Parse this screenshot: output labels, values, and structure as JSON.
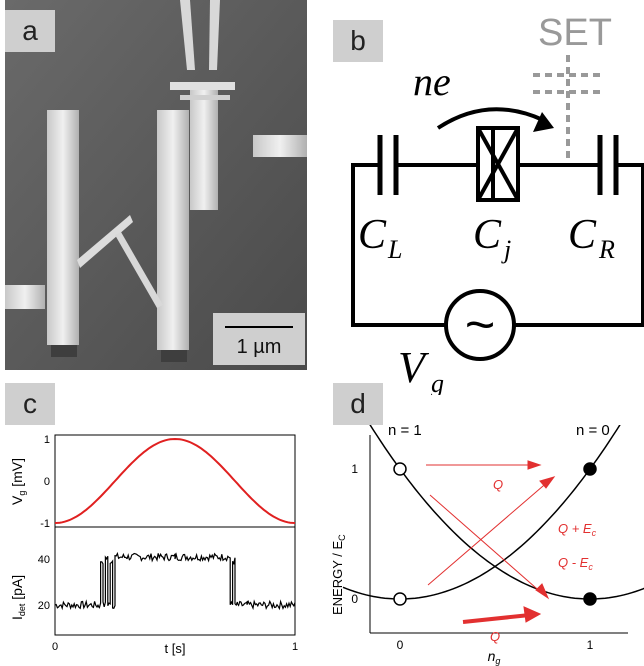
{
  "panels": {
    "a": {
      "label": "a",
      "scalebar": "1 µm"
    },
    "b": {
      "label": "b",
      "set_label": "SET",
      "ne_label": "ne",
      "cl": "C",
      "cl_sub": "L",
      "cj": "C",
      "cj_sub": "j",
      "cr": "C",
      "cr_sub": "R",
      "vg": "V",
      "vg_sub": "g",
      "source_symbol": "~"
    },
    "c": {
      "label": "c",
      "top_ylabel": "V",
      "top_ylabel_sub": "g",
      "top_ylabel_unit": " [mV]",
      "top_ticks": [
        "1",
        "0",
        "-1"
      ],
      "bottom_ylabel": "I",
      "bottom_ylabel_sub": "det",
      "bottom_ylabel_unit": " [pA]",
      "bottom_ticks": [
        "40",
        "20"
      ],
      "xlabel": "t [s]",
      "xticks": [
        "0",
        "1"
      ],
      "colors": {
        "sine": "#e02020",
        "trace": "#000000"
      }
    },
    "d": {
      "label": "d",
      "ylabel": "ENERGY / E",
      "ylabel_sub": "C",
      "xlabel": "n",
      "xlabel_sub": "g",
      "xticks": [
        "0",
        "1"
      ],
      "yticks": [
        "0",
        "1"
      ],
      "n1_label": "n = 1",
      "n0_label": "n = 0",
      "arrow_labels": {
        "q_top": "Q",
        "q_plus": "Q + E",
        "q_plus_sub": "c",
        "q_minus": "Q - E",
        "q_minus_sub": "c",
        "q_bottom": "Q"
      },
      "colors": {
        "arrow": "#e23030",
        "curve": "#000000"
      }
    }
  },
  "chart_data": [
    {
      "type": "line",
      "panel": "c-top",
      "ylabel": "Vg [mV]",
      "xlabel": "t [s]",
      "xlim": [
        0,
        1
      ],
      "ylim": [
        -1,
        1
      ],
      "series": [
        {
          "x": [
            0,
            0.125,
            0.25,
            0.375,
            0.5,
            0.625,
            0.75,
            0.875,
            1
          ],
          "y": [
            -1,
            -0.71,
            0,
            0.71,
            1,
            0.71,
            0,
            -0.71,
            -1
          ]
        }
      ]
    },
    {
      "type": "line",
      "panel": "c-bottom",
      "ylabel": "Idet [pA]",
      "xlabel": "t [s]",
      "xlim": [
        0,
        1
      ],
      "series": [
        {
          "x": [
            0,
            0.18,
            0.19,
            0.2,
            0.21,
            0.22,
            0.23,
            0.24,
            0.25,
            0.3,
            0.5,
            0.7,
            0.73,
            0.74,
            0.75,
            0.76,
            0.8,
            1
          ],
          "y": [
            18,
            18,
            42,
            18,
            44,
            18,
            42,
            18,
            44,
            44,
            44,
            44,
            18,
            42,
            18,
            18,
            18,
            18
          ]
        }
      ]
    },
    {
      "type": "line",
      "panel": "d",
      "ylabel": "ENERGY / Ec",
      "xlabel": "ng",
      "xlim": [
        -0.3,
        1.3
      ],
      "ylim": [
        -0.15,
        1.4
      ],
      "series": [
        {
          "name": "n = 1",
          "x": [
            -0.3,
            0,
            0.5,
            1,
            1.3
          ],
          "y": [
            1.69,
            1,
            0.25,
            0,
            0.09
          ]
        },
        {
          "name": "n = 0",
          "x": [
            -0.3,
            0,
            0.5,
            1,
            1.3
          ],
          "y": [
            0.09,
            0,
            0.25,
            1,
            1.69
          ]
        }
      ],
      "points": [
        {
          "x": 0,
          "y": 1,
          "filled": false
        },
        {
          "x": 0,
          "y": 0,
          "filled": false
        },
        {
          "x": 1,
          "y": 1,
          "filled": true
        },
        {
          "x": 1,
          "y": 0,
          "filled": true
        }
      ]
    }
  ]
}
